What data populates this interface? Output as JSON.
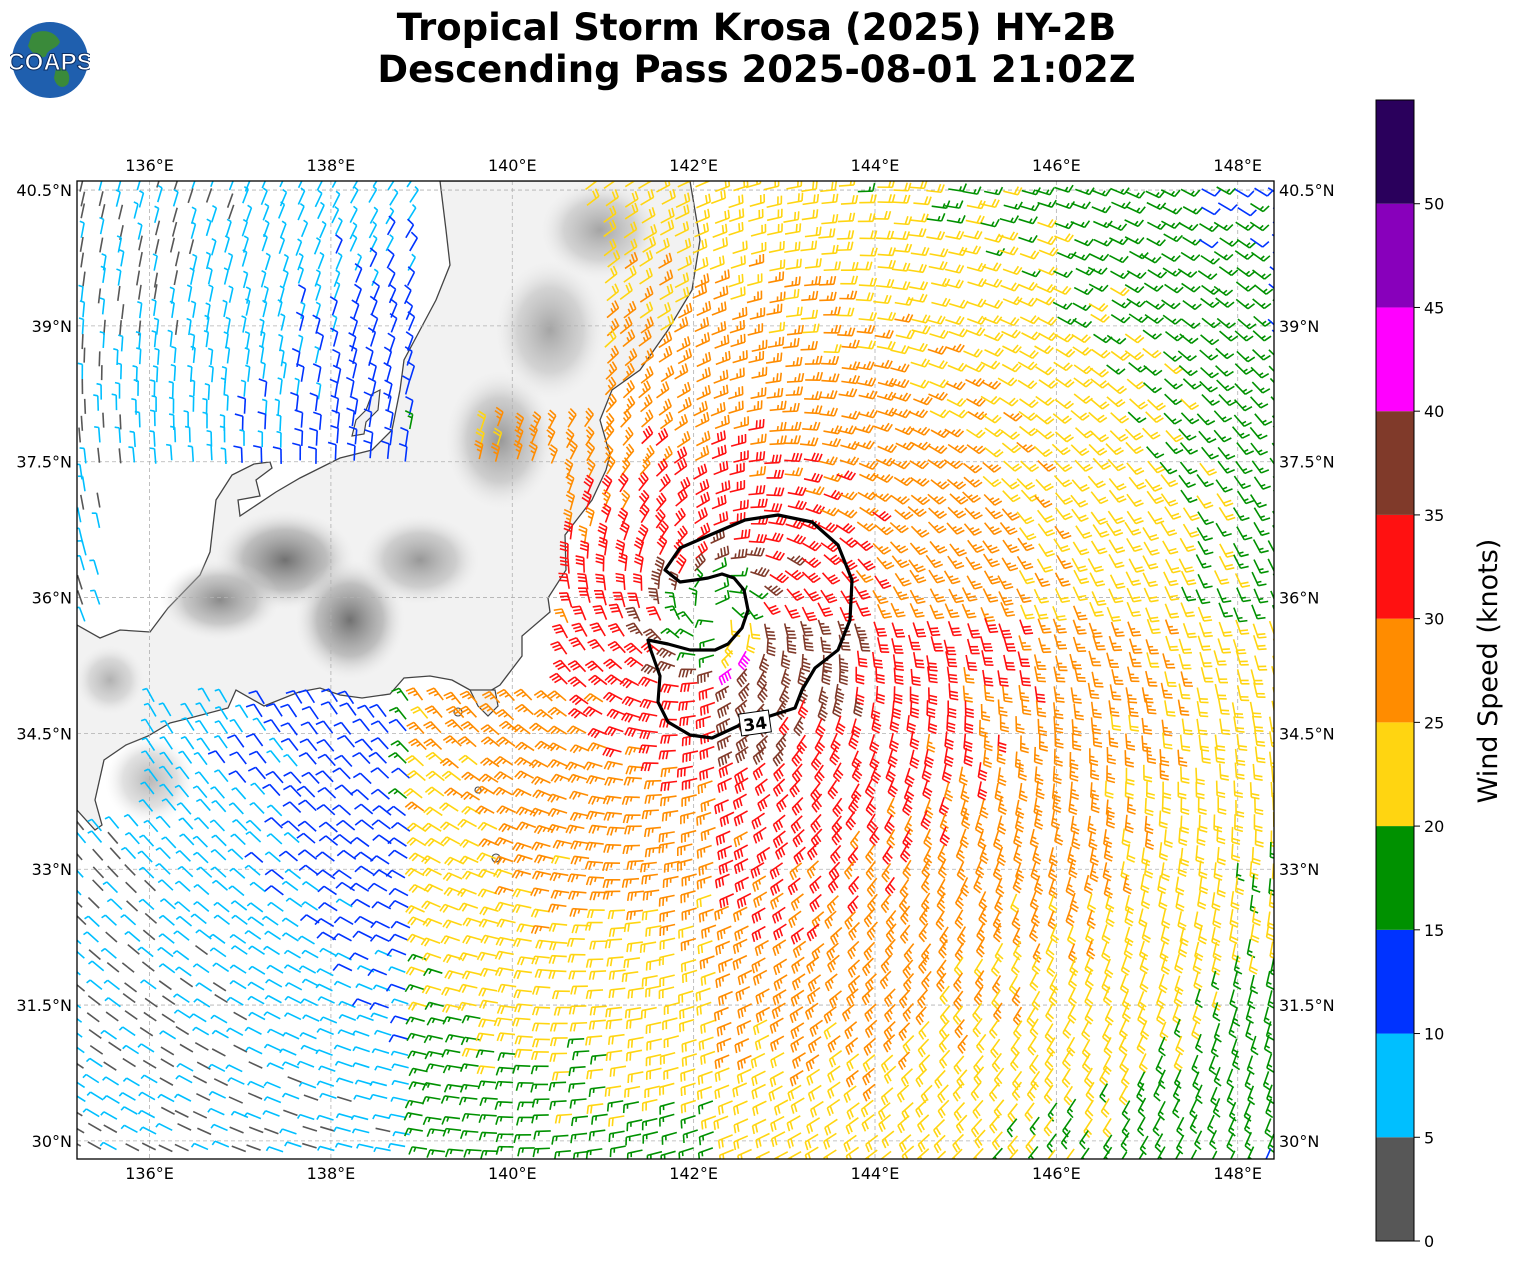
{
  "title": {
    "line1": "Tropical Storm Krosa (2025) HY-2B",
    "line2": "Descending Pass 2025-08-01 21:02Z"
  },
  "logo": {
    "text": "COAPS",
    "icon": "globe-logo-icon"
  },
  "map": {
    "lon_ticks": [
      {
        "value": 136,
        "label": "136°E"
      },
      {
        "value": 138,
        "label": "138°E"
      },
      {
        "value": 140,
        "label": "140°E"
      },
      {
        "value": 142,
        "label": "142°E"
      },
      {
        "value": 144,
        "label": "144°E"
      },
      {
        "value": 146,
        "label": "146°E"
      },
      {
        "value": 148,
        "label": "148°E"
      }
    ],
    "lat_ticks": [
      {
        "value": 40.5,
        "label": "40.5°N"
      },
      {
        "value": 39,
        "label": "39°N"
      },
      {
        "value": 37.5,
        "label": "37.5°N"
      },
      {
        "value": 36,
        "label": "36°N"
      },
      {
        "value": 34.5,
        "label": "34.5°N"
      },
      {
        "value": 33,
        "label": "33°N"
      },
      {
        "value": 31.5,
        "label": "31.5°N"
      },
      {
        "value": 30,
        "label": "30°N"
      }
    ],
    "lon_range": [
      135.2,
      148.4
    ],
    "lat_range": [
      29.8,
      40.6
    ],
    "grid": true,
    "storm_center": {
      "lon": 142.25,
      "lat": 35.8
    },
    "contour_label": "34"
  },
  "colorbar": {
    "label": "Wind Speed (knots)",
    "ticks": [
      "0",
      "5",
      "10",
      "15",
      "20",
      "25",
      "30",
      "35",
      "40",
      "45",
      "50"
    ],
    "bins": [
      {
        "min": 0,
        "max": 5,
        "color": "#575757"
      },
      {
        "min": 5,
        "max": 10,
        "color": "#00bfff"
      },
      {
        "min": 10,
        "max": 15,
        "color": "#0033ff"
      },
      {
        "min": 15,
        "max": 20,
        "color": "#009100"
      },
      {
        "min": 20,
        "max": 25,
        "color": "#ffd511"
      },
      {
        "min": 25,
        "max": 30,
        "color": "#ff8c00"
      },
      {
        "min": 30,
        "max": 35,
        "color": "#ff1111"
      },
      {
        "min": 35,
        "max": 40,
        "color": "#803a2a"
      },
      {
        "min": 40,
        "max": 45,
        "color": "#ff00ff"
      },
      {
        "min": 45,
        "max": 50,
        "color": "#8800bb"
      },
      {
        "min": 50,
        "max": 55,
        "color": "#2a005c"
      }
    ]
  },
  "colors": {
    "coast": "#444444",
    "contour": "#000000",
    "grid": "#b0b0b0"
  }
}
